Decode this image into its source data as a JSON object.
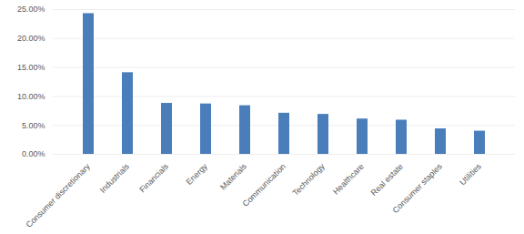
{
  "chart_data": {
    "type": "bar",
    "categories": [
      "Consumer discretionary",
      "Industrials",
      "Financials",
      "Energy",
      "Materials",
      "Communication",
      "Technology",
      "Healthcare",
      "Real estate",
      "Consumer staples",
      "Utilities"
    ],
    "values": [
      24.3,
      14.1,
      8.8,
      8.7,
      8.4,
      7.1,
      6.9,
      6.1,
      5.9,
      4.4,
      4.0
    ],
    "color": "#4a7ebb",
    "ylim": [
      0,
      25
    ],
    "yticks": [
      {
        "value": 0,
        "label": "0.00%"
      },
      {
        "value": 5,
        "label": "5.00%"
      },
      {
        "value": 10,
        "label": "10.00%"
      },
      {
        "value": 15,
        "label": "15.00%"
      },
      {
        "value": 20,
        "label": "20.00%"
      },
      {
        "value": 25,
        "label": "25.00%"
      }
    ],
    "grid": true
  }
}
